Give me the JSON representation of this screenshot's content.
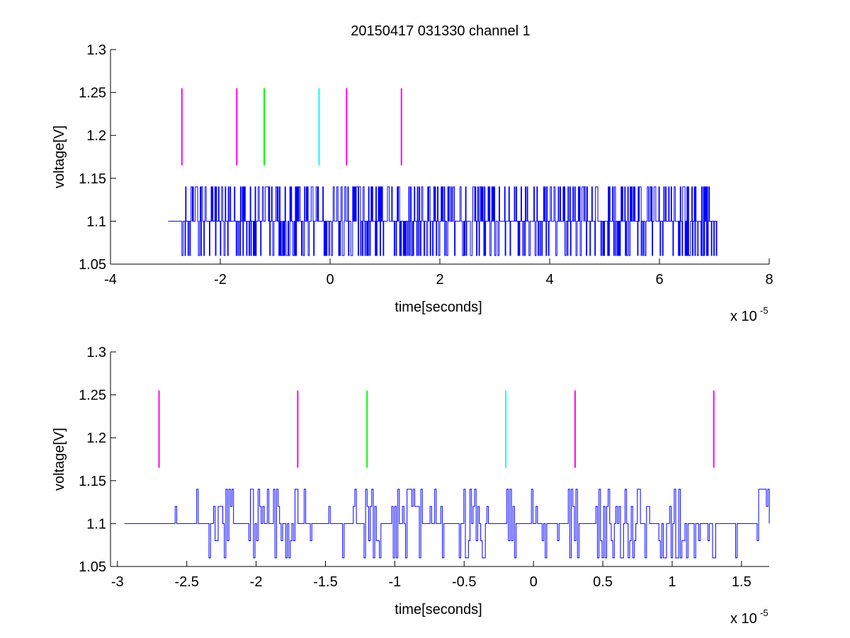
{
  "figure_title": "20150417 031330 channel 1",
  "colors": {
    "trace": "#0000ff",
    "magenta": "#ff00ff",
    "green": "#00ff00",
    "cyan": "#00ffff",
    "axes": "#000000"
  },
  "chart_data": [
    {
      "type": "line",
      "xlabel": "time[seconds]",
      "ylabel": "voltage[V]",
      "x_multiplier_base": "x 10",
      "x_multiplier_exp": "-5",
      "xlim": [
        -4,
        8
      ],
      "ylim": [
        1.05,
        1.3
      ],
      "xticks": [
        -4,
        -2,
        0,
        2,
        4,
        6,
        8
      ],
      "xtick_labels": [
        "-4",
        "-2",
        "0",
        "2",
        "4",
        "6",
        "8"
      ],
      "yticks": [
        1.05,
        1.1,
        1.15,
        1.2,
        1.25,
        1.3
      ],
      "ytick_labels": [
        "1.05",
        "1.1",
        "1.15",
        "1.2",
        "1.25",
        "1.3"
      ],
      "series": [
        {
          "style": "step-noise",
          "color": "trace",
          "x_start": -2.95,
          "x_end": 7.05,
          "baseline": 1.1,
          "levels": [
            1.06,
            1.1,
            1.14
          ]
        }
      ],
      "markers": [
        {
          "x": -2.7,
          "y_from": 1.165,
          "y_to": 1.255,
          "color": "magenta"
        },
        {
          "x": -1.7,
          "y_from": 1.165,
          "y_to": 1.255,
          "color": "magenta"
        },
        {
          "x": -1.2,
          "y_from": 1.165,
          "y_to": 1.255,
          "color": "green"
        },
        {
          "x": -0.2,
          "y_from": 1.165,
          "y_to": 1.255,
          "color": "cyan"
        },
        {
          "x": 0.3,
          "y_from": 1.165,
          "y_to": 1.255,
          "color": "magenta"
        },
        {
          "x": 1.3,
          "y_from": 1.165,
          "y_to": 1.255,
          "color": "magenta"
        }
      ]
    },
    {
      "type": "line",
      "xlabel": "time[seconds]",
      "ylabel": "voltage[V]",
      "x_multiplier_base": "x 10",
      "x_multiplier_exp": "-5",
      "xlim": [
        -3.05,
        1.7
      ],
      "ylim": [
        1.05,
        1.3
      ],
      "xticks": [
        -3,
        -2.5,
        -2,
        -1.5,
        -1,
        -0.5,
        0,
        0.5,
        1,
        1.5
      ],
      "xtick_labels": [
        "-3",
        "-2.5",
        "-2",
        "-1.5",
        "-1",
        "-0.5",
        "0",
        "0.5",
        "1",
        "1.5"
      ],
      "yticks": [
        1.05,
        1.1,
        1.15,
        1.2,
        1.25,
        1.3
      ],
      "ytick_labels": [
        "1.05",
        "1.1",
        "1.15",
        "1.2",
        "1.25",
        "1.3"
      ],
      "series": [
        {
          "style": "step-noise",
          "color": "trace",
          "x_start": -2.95,
          "x_end": 1.7,
          "baseline": 1.1,
          "levels": [
            1.06,
            1.08,
            1.1,
            1.12,
            1.14
          ]
        }
      ],
      "markers": [
        {
          "x": -2.7,
          "y_from": 1.165,
          "y_to": 1.255,
          "color": "magenta"
        },
        {
          "x": -1.7,
          "y_from": 1.165,
          "y_to": 1.255,
          "color": "magenta"
        },
        {
          "x": -1.2,
          "y_from": 1.165,
          "y_to": 1.255,
          "color": "green"
        },
        {
          "x": -0.2,
          "y_from": 1.165,
          "y_to": 1.255,
          "color": "cyan"
        },
        {
          "x": 0.3,
          "y_from": 1.165,
          "y_to": 1.255,
          "color": "magenta"
        },
        {
          "x": 1.3,
          "y_from": 1.165,
          "y_to": 1.255,
          "color": "magenta"
        }
      ]
    }
  ]
}
